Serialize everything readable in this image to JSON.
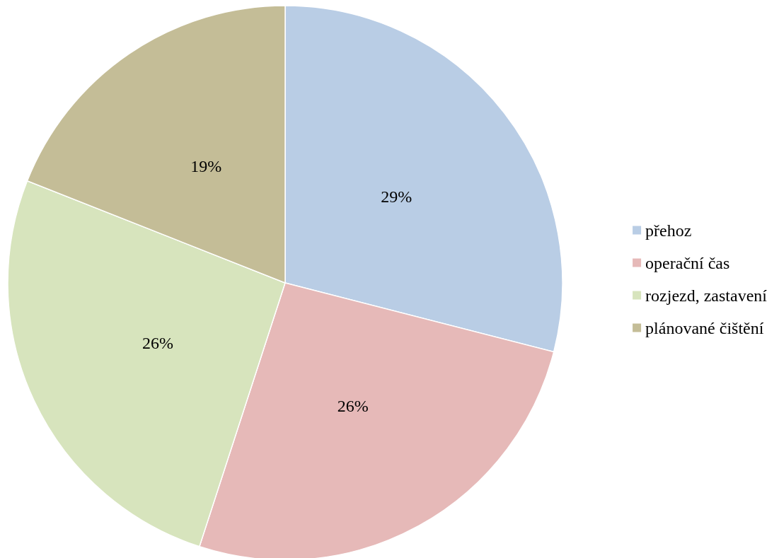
{
  "chart_data": {
    "type": "pie",
    "categories": [
      "přehoz",
      "operační čas",
      "rozjezd, zastavení",
      "plánované čištění"
    ],
    "values": [
      29,
      26,
      26,
      19
    ],
    "colors": [
      "#b9cde5",
      "#e6b9b8",
      "#d7e4bd",
      "#c4bd97"
    ],
    "value_labels": [
      "29%",
      "26%",
      "26%",
      "19%"
    ],
    "legend": "right"
  }
}
